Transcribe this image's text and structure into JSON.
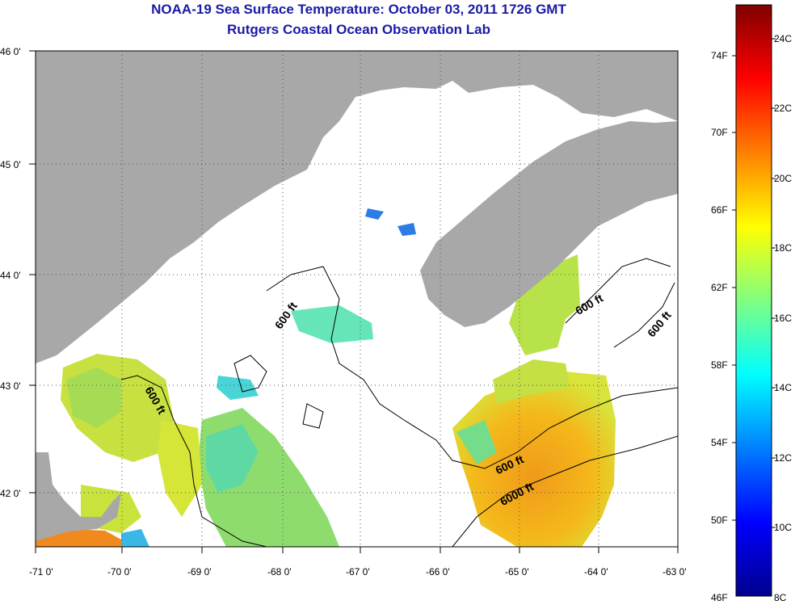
{
  "header": {
    "title": "NOAA-19 Sea Surface Temperature:  October 03, 2011 1726 GMT",
    "subtitle": "Rutgers Coastal Ocean Observation Lab"
  },
  "map": {
    "lon_ticks": [
      "-71 0'",
      "-70 0'",
      "-69 0'",
      "-68 0'",
      "-67 0'",
      "-66 0'",
      "-65 0'",
      "-64 0'",
      "-63 0'"
    ],
    "lat_ticks": [
      "46 0'",
      "45 0'",
      "44 0'",
      "43 0'",
      "42 0'"
    ],
    "contour_labels": [
      "600 ft",
      "600 ft",
      "600 ft",
      "600 ft",
      "600 ft",
      "6000 ft"
    ],
    "colors": {
      "land": "#a8a8a8",
      "cloud": "#ffffff",
      "grid": "#555555"
    }
  },
  "colorbar": {
    "fahrenheit": [
      "74F",
      "70F",
      "66F",
      "62F",
      "58F",
      "54F",
      "50F",
      "46F"
    ],
    "celsius": [
      "24C",
      "22C",
      "20C",
      "18C",
      "16C",
      "14C",
      "12C",
      "10C",
      "8C"
    ]
  }
}
